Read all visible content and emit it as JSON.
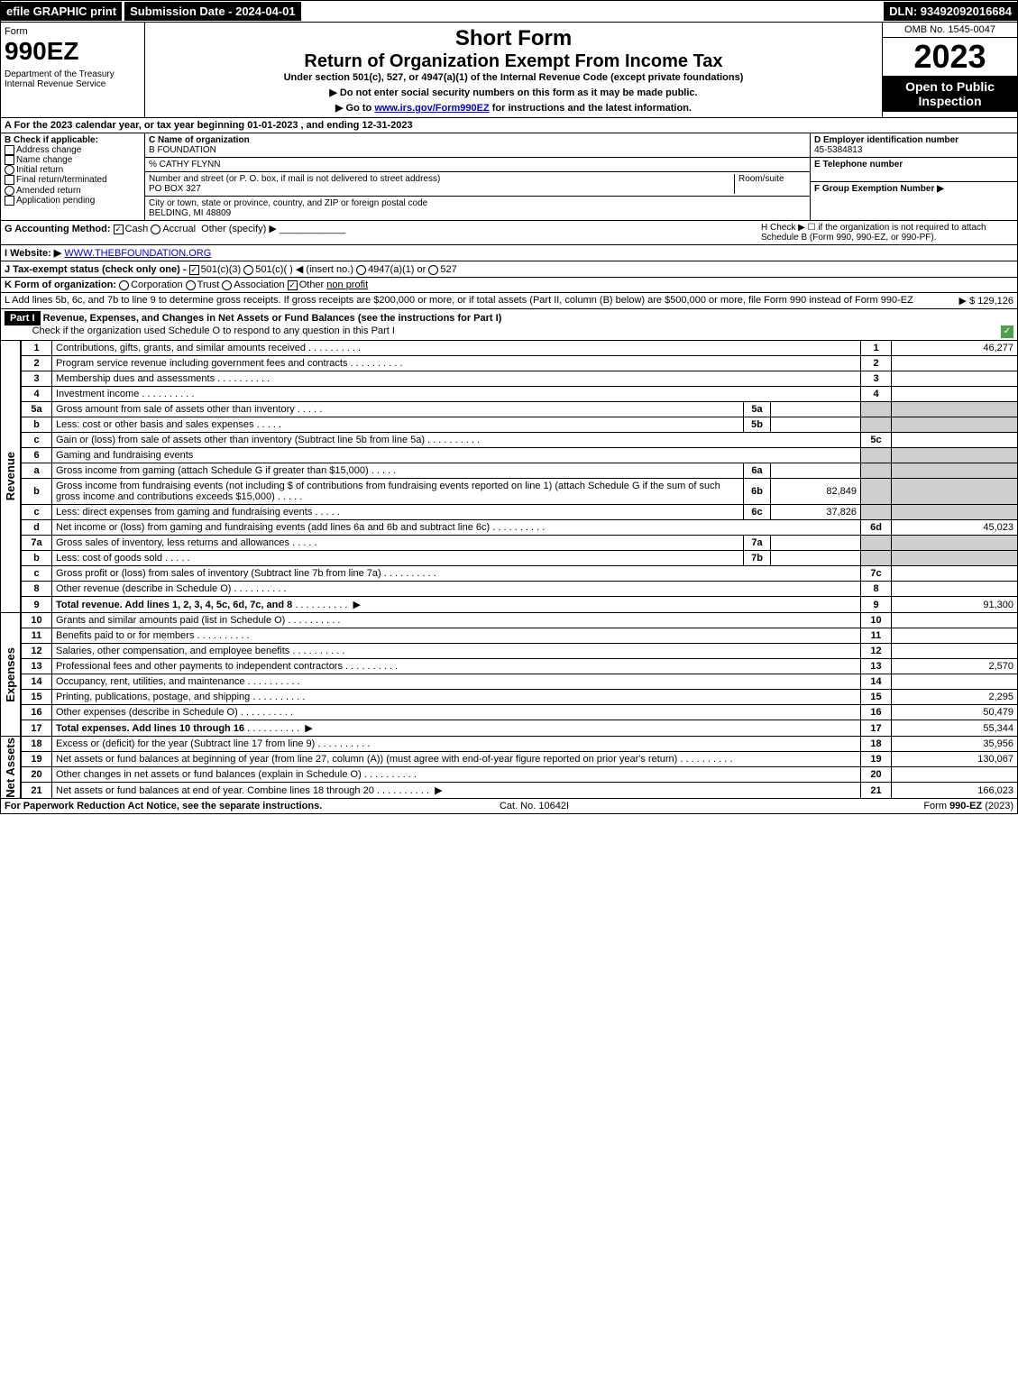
{
  "topbar": {
    "efile": "efile GRAPHIC print",
    "subdate": "Submission Date - 2024-04-01",
    "dln": "DLN: 93492092016684"
  },
  "header": {
    "form_label": "Form",
    "form_number": "990EZ",
    "dept": "Department of the Treasury\nInternal Revenue Service",
    "short_form": "Short Form",
    "return_title": "Return of Organization Exempt From Income Tax",
    "under": "Under section 501(c), 527, or 4947(a)(1) of the Internal Revenue Code (except private foundations)",
    "note1": "▶ Do not enter social security numbers on this form as it may be made public.",
    "note2_pre": "▶ Go to ",
    "note2_link": "www.irs.gov/Form990EZ",
    "note2_post": " for instructions and the latest information.",
    "omb": "OMB No. 1545-0047",
    "year": "2023",
    "open": "Open to Public Inspection"
  },
  "lineA": "A  For the 2023 calendar year, or tax year beginning 01-01-2023 , and ending 12-31-2023",
  "B": {
    "label": "B  Check if applicable:",
    "items": [
      "Address change",
      "Name change",
      "Initial return",
      "Final return/terminated",
      "Amended return",
      "Application pending"
    ]
  },
  "C": {
    "name_label": "C Name of organization",
    "name": "B FOUNDATION",
    "care_of": "% CATHY FLYNN",
    "street_label": "Number and street (or P. O. box, if mail is not delivered to street address)",
    "room_label": "Room/suite",
    "street": "PO BOX 327",
    "city_label": "City or town, state or province, country, and ZIP or foreign postal code",
    "city": "BELDING, MI  48809"
  },
  "D": {
    "label": "D Employer identification number",
    "value": "45-5384813"
  },
  "E": {
    "label": "E Telephone number",
    "value": ""
  },
  "F": {
    "label": "F Group Exemption Number  ▶",
    "value": ""
  },
  "G": {
    "label": "G Accounting Method:",
    "cash": "Cash",
    "accrual": "Accrual",
    "other": "Other (specify) ▶"
  },
  "H": {
    "text": "H  Check ▶ ☐ if the organization is not required to attach Schedule B (Form 990, 990-EZ, or 990-PF)."
  },
  "I": {
    "label": "I Website: ▶",
    "value": "WWW.THEBFOUNDATION.ORG"
  },
  "J": {
    "label": "J Tax-exempt status (check only one) -",
    "opts": [
      "501(c)(3)",
      "501(c)(  ) ◀ (insert no.)",
      "4947(a)(1) or",
      "527"
    ]
  },
  "K": {
    "label": "K Form of organization:",
    "opts": [
      "Corporation",
      "Trust",
      "Association",
      "Other"
    ],
    "other_val": "non profit"
  },
  "L": {
    "text": "L Add lines 5b, 6c, and 7b to line 9 to determine gross receipts. If gross receipts are $200,000 or more, or if total assets (Part II, column (B) below) are $500,000 or more, file Form 990 instead of Form 990-EZ",
    "amount": "▶ $ 129,126"
  },
  "PartI": {
    "title": "Part I",
    "heading": "Revenue, Expenses, and Changes in Net Assets or Fund Balances (see the instructions for Part I)",
    "check": "Check if the organization used Schedule O to respond to any question in this Part I"
  },
  "revenue_label": "Revenue",
  "expenses_label": "Expenses",
  "netassets_label": "Net Assets",
  "lines": {
    "l1": {
      "no": "1",
      "txt": "Contributions, gifts, grants, and similar amounts received",
      "rno": "1",
      "val": "46,277"
    },
    "l2": {
      "no": "2",
      "txt": "Program service revenue including government fees and contracts",
      "rno": "2",
      "val": ""
    },
    "l3": {
      "no": "3",
      "txt": "Membership dues and assessments",
      "rno": "3",
      "val": ""
    },
    "l4": {
      "no": "4",
      "txt": "Investment income",
      "rno": "4",
      "val": ""
    },
    "l5a": {
      "no": "5a",
      "txt": "Gross amount from sale of assets other than inventory",
      "midno": "5a",
      "midval": ""
    },
    "l5b": {
      "no": "b",
      "txt": "Less: cost or other basis and sales expenses",
      "midno": "5b",
      "midval": ""
    },
    "l5c": {
      "no": "c",
      "txt": "Gain or (loss) from sale of assets other than inventory (Subtract line 5b from line 5a)",
      "rno": "5c",
      "val": ""
    },
    "l6": {
      "no": "6",
      "txt": "Gaming and fundraising events"
    },
    "l6a": {
      "no": "a",
      "txt": "Gross income from gaming (attach Schedule G if greater than $15,000)",
      "midno": "6a",
      "midval": ""
    },
    "l6b": {
      "no": "b",
      "txt": "Gross income from fundraising events (not including $                   of contributions from fundraising events reported on line 1) (attach Schedule G if the sum of such gross income and contributions exceeds $15,000)",
      "midno": "6b",
      "midval": "82,849"
    },
    "l6c": {
      "no": "c",
      "txt": "Less: direct expenses from gaming and fundraising events",
      "midno": "6c",
      "midval": "37,826"
    },
    "l6d": {
      "no": "d",
      "txt": "Net income or (loss) from gaming and fundraising events (add lines 6a and 6b and subtract line 6c)",
      "rno": "6d",
      "val": "45,023"
    },
    "l7a": {
      "no": "7a",
      "txt": "Gross sales of inventory, less returns and allowances",
      "midno": "7a",
      "midval": ""
    },
    "l7b": {
      "no": "b",
      "txt": "Less: cost of goods sold",
      "midno": "7b",
      "midval": ""
    },
    "l7c": {
      "no": "c",
      "txt": "Gross profit or (loss) from sales of inventory (Subtract line 7b from line 7a)",
      "rno": "7c",
      "val": ""
    },
    "l8": {
      "no": "8",
      "txt": "Other revenue (describe in Schedule O)",
      "rno": "8",
      "val": ""
    },
    "l9": {
      "no": "9",
      "txt": "Total revenue. Add lines 1, 2, 3, 4, 5c, 6d, 7c, and 8",
      "rno": "9",
      "val": "91,300",
      "bold": true,
      "arrow": true
    },
    "l10": {
      "no": "10",
      "txt": "Grants and similar amounts paid (list in Schedule O)",
      "rno": "10",
      "val": ""
    },
    "l11": {
      "no": "11",
      "txt": "Benefits paid to or for members",
      "rno": "11",
      "val": ""
    },
    "l12": {
      "no": "12",
      "txt": "Salaries, other compensation, and employee benefits",
      "rno": "12",
      "val": ""
    },
    "l13": {
      "no": "13",
      "txt": "Professional fees and other payments to independent contractors",
      "rno": "13",
      "val": "2,570"
    },
    "l14": {
      "no": "14",
      "txt": "Occupancy, rent, utilities, and maintenance",
      "rno": "14",
      "val": ""
    },
    "l15": {
      "no": "15",
      "txt": "Printing, publications, postage, and shipping",
      "rno": "15",
      "val": "2,295"
    },
    "l16": {
      "no": "16",
      "txt": "Other expenses (describe in Schedule O)",
      "rno": "16",
      "val": "50,479"
    },
    "l17": {
      "no": "17",
      "txt": "Total expenses. Add lines 10 through 16",
      "rno": "17",
      "val": "55,344",
      "bold": true,
      "arrow": true
    },
    "l18": {
      "no": "18",
      "txt": "Excess or (deficit) for the year (Subtract line 17 from line 9)",
      "rno": "18",
      "val": "35,956"
    },
    "l19": {
      "no": "19",
      "txt": "Net assets or fund balances at beginning of year (from line 27, column (A)) (must agree with end-of-year figure reported on prior year's return)",
      "rno": "19",
      "val": "130,067"
    },
    "l20": {
      "no": "20",
      "txt": "Other changes in net assets or fund balances (explain in Schedule O)",
      "rno": "20",
      "val": ""
    },
    "l21": {
      "no": "21",
      "txt": "Net assets or fund balances at end of year. Combine lines 18 through 20",
      "rno": "21",
      "val": "166,023",
      "arrow": true
    }
  },
  "footer": {
    "left": "For Paperwork Reduction Act Notice, see the separate instructions.",
    "center": "Cat. No. 10642I",
    "right_pre": "Form ",
    "right_bold": "990-EZ",
    "right_post": " (2023)"
  }
}
